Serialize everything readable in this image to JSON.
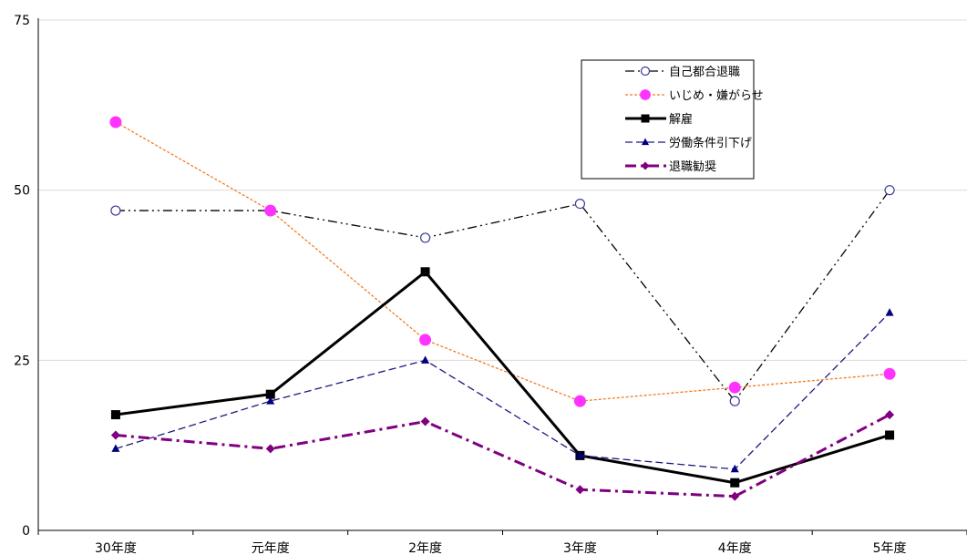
{
  "chart_data": {
    "type": "line",
    "categories": [
      "30年度",
      "元年度",
      "2年度",
      "3年度",
      "4年度",
      "5年度"
    ],
    "ylim": [
      0,
      75
    ],
    "yticks": [
      0,
      25,
      50,
      75
    ],
    "grid": "horizontal",
    "legend_placement": "top-right",
    "series": [
      {
        "name": "自己都合退職",
        "values": [
          47,
          47,
          43,
          48,
          19,
          50
        ],
        "color": "#000000",
        "dash": "dash-dot-dot",
        "marker": "open-circle",
        "marker_color": "#3b3b9a"
      },
      {
        "name": "いじめ・嫌がらせ",
        "values": [
          60,
          47,
          28,
          19,
          21,
          23
        ],
        "color": "#f47a20",
        "dash": "dotted",
        "marker": "circle",
        "marker_color": "#ff33ff"
      },
      {
        "name": "解雇",
        "values": [
          17,
          20,
          38,
          11,
          7,
          14
        ],
        "color": "#000000",
        "dash": "solid",
        "marker": "square",
        "marker_color": "#000000"
      },
      {
        "name": "労働条件引下げ",
        "values": [
          12,
          19,
          25,
          11,
          9,
          32
        ],
        "color": "#1a1a80",
        "dash": "dashed",
        "marker": "triangle",
        "marker_color": "#000080"
      },
      {
        "name": "退職勧奨",
        "values": [
          14,
          12,
          16,
          6,
          5,
          17
        ],
        "color": "#800080",
        "dash": "dash-dot",
        "marker": "diamond",
        "marker_color": "#800080"
      }
    ]
  }
}
